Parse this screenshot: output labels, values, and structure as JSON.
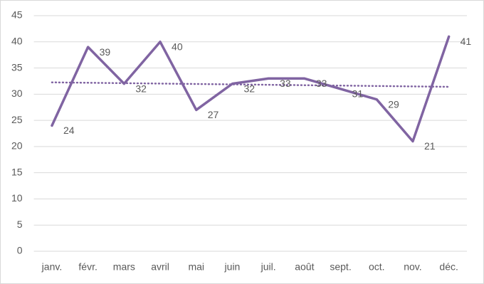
{
  "chart_data": {
    "type": "line",
    "categories": [
      "janv.",
      "févr.",
      "mars",
      "avril",
      "mai",
      "juin",
      "juil.",
      "août",
      "sept.",
      "oct.",
      "nov.",
      "déc."
    ],
    "values": [
      24,
      39,
      32,
      40,
      27,
      32,
      33,
      33,
      31,
      29,
      21,
      41
    ],
    "color": "#8064a2",
    "ylim": [
      0,
      45
    ],
    "yticks": [
      0,
      5,
      10,
      15,
      20,
      25,
      30,
      35,
      40,
      45
    ],
    "grid": true,
    "data_labels": true,
    "trendline": "linear"
  }
}
